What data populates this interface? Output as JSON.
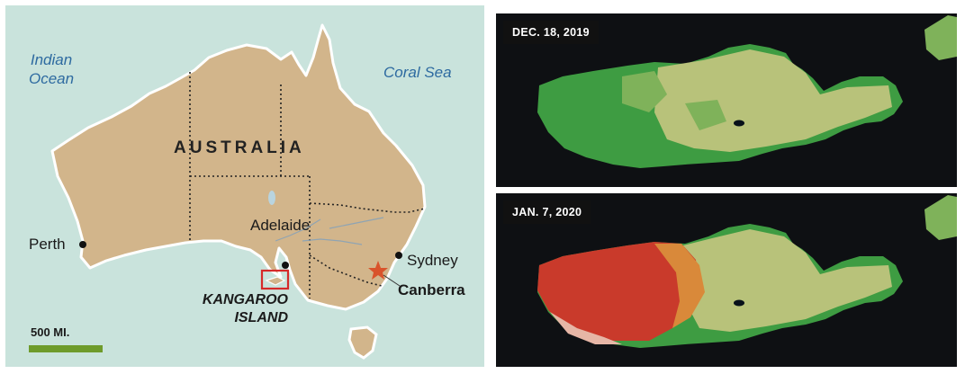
{
  "map": {
    "oceans": {
      "indian": [
        "Indian",
        "Ocean"
      ],
      "coral": "Coral Sea"
    },
    "country": "AUSTRALIA",
    "cities": {
      "perth": "Perth",
      "adelaide": "Adelaide",
      "sydney": "Sydney",
      "canberra": "Canberra"
    },
    "island": [
      "KANGAROO",
      "ISLAND"
    ],
    "scale": "500 MI.",
    "colors": {
      "land": "#d2b58b",
      "sea": "#c9e3dc",
      "scale_bar": "#6e9b2b",
      "highlight_box": "#d62a2a",
      "capital_star": "#d9532b"
    }
  },
  "images": {
    "before": {
      "date": "DEC. 18, 2019"
    },
    "after": {
      "date": "JAN. 7, 2020"
    }
  }
}
